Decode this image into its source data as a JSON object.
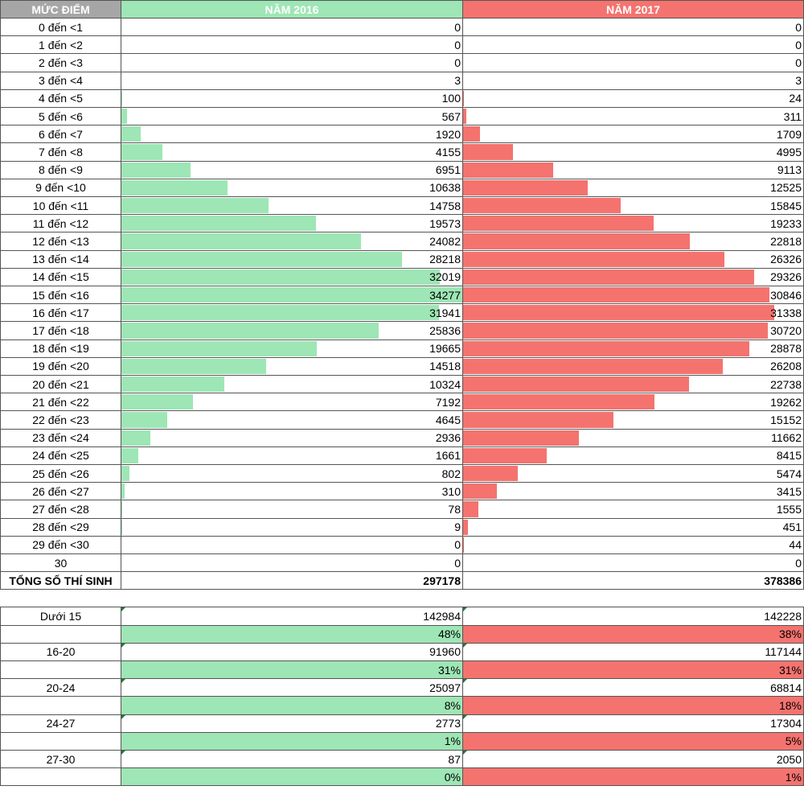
{
  "header": {
    "label": "MỨC ĐIỂM",
    "col_a": "NĂM 2016",
    "col_b": "NĂM 2017"
  },
  "max_value": 34277,
  "rows": [
    {
      "label": "0 đến <1",
      "a": 0,
      "b": 0
    },
    {
      "label": "1 đến <2",
      "a": 0,
      "b": 0
    },
    {
      "label": "2 đến <3",
      "a": 0,
      "b": 0
    },
    {
      "label": "3 đến <4",
      "a": 3,
      "b": 3
    },
    {
      "label": "4 đến <5",
      "a": 100,
      "b": 24
    },
    {
      "label": "5 đến <6",
      "a": 567,
      "b": 311
    },
    {
      "label": "6 đến <7",
      "a": 1920,
      "b": 1709
    },
    {
      "label": "7 đến <8",
      "a": 4155,
      "b": 4995
    },
    {
      "label": "8 đến <9",
      "a": 6951,
      "b": 9113
    },
    {
      "label": "9 đến <10",
      "a": 10638,
      "b": 12525
    },
    {
      "label": "10 đến <11",
      "a": 14758,
      "b": 15845
    },
    {
      "label": "11 đến <12",
      "a": 19573,
      "b": 19233
    },
    {
      "label": "12 đến <13",
      "a": 24082,
      "b": 22818
    },
    {
      "label": "13 đến <14",
      "a": 28218,
      "b": 26326
    },
    {
      "label": "14 đến <15",
      "a": 32019,
      "b": 29326
    },
    {
      "label": "15 đến <16",
      "a": 34277,
      "b": 30846
    },
    {
      "label": "16 đến <17",
      "a": 31941,
      "b": 31338
    },
    {
      "label": "17 đến <18",
      "a": 25836,
      "b": 30720
    },
    {
      "label": "18 đến <19",
      "a": 19665,
      "b": 28878
    },
    {
      "label": "19 đến <20",
      "a": 14518,
      "b": 26208
    },
    {
      "label": "20 đến <21",
      "a": 10324,
      "b": 22738
    },
    {
      "label": "21 đến <22",
      "a": 7192,
      "b": 19262
    },
    {
      "label": "22 đến <23",
      "a": 4645,
      "b": 15152
    },
    {
      "label": "23 đến <24",
      "a": 2936,
      "b": 11662
    },
    {
      "label": "24 đến <25",
      "a": 1661,
      "b": 8415
    },
    {
      "label": "25 đến <26",
      "a": 802,
      "b": 5474
    },
    {
      "label": "26 đến <27",
      "a": 310,
      "b": 3415
    },
    {
      "label": "27 đến <28",
      "a": 78,
      "b": 1555
    },
    {
      "label": "28 đến <29",
      "a": 9,
      "b": 451
    },
    {
      "label": "29 đến <30",
      "a": 0,
      "b": 44
    },
    {
      "label": "30",
      "a": 0,
      "b": 0
    }
  ],
  "total": {
    "label": "TỔNG SỐ THÍ SINH",
    "a": "297178",
    "b": "378386"
  },
  "summary": [
    {
      "label": "Dưới 15",
      "a": "142984",
      "b": "142228",
      "pa": "48%",
      "pb": "38%"
    },
    {
      "label": "16-20",
      "a": "91960",
      "b": "117144",
      "pa": "31%",
      "pb": "31%"
    },
    {
      "label": "20-24",
      "a": "25097",
      "b": "68814",
      "pa": "8%",
      "pb": "18%"
    },
    {
      "label": "24-27",
      "a": "2773",
      "b": "17304",
      "pa": "1%",
      "pb": "5%"
    },
    {
      "label": "27-30",
      "a": "87",
      "b": "2050",
      "pa": "0%",
      "pb": "1%"
    }
  ],
  "colors": {
    "green": "#9ee6b5",
    "red": "#f4736f",
    "header_gray": "#a6a6a6"
  }
}
